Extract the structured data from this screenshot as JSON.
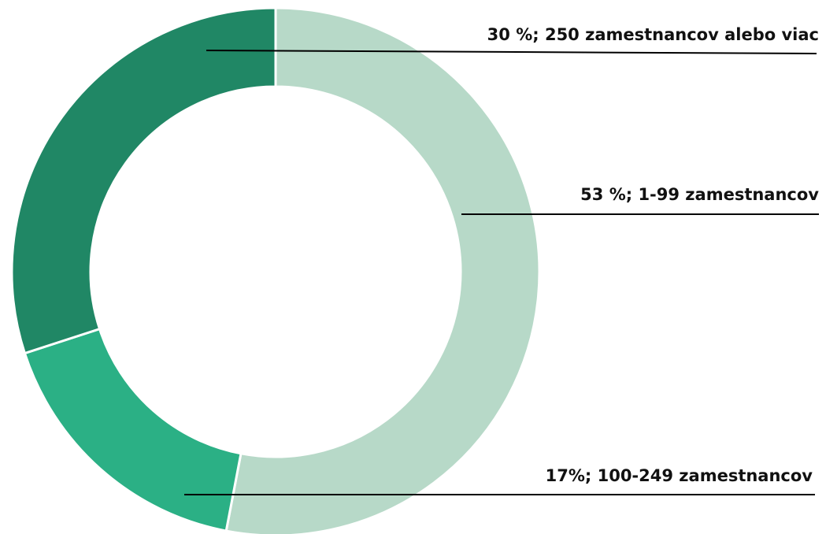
{
  "chart_data": {
    "type": "donut",
    "values": [
      53,
      17,
      30
    ],
    "value_labels": [
      "53 %; 1-99 zamestnancov",
      "17%; 100-249 zamestnancov",
      "30 %; 250 zamestnancov alebo viac"
    ],
    "colors": [
      "#b7d9c8",
      "#2bb085",
      "#208765"
    ]
  }
}
